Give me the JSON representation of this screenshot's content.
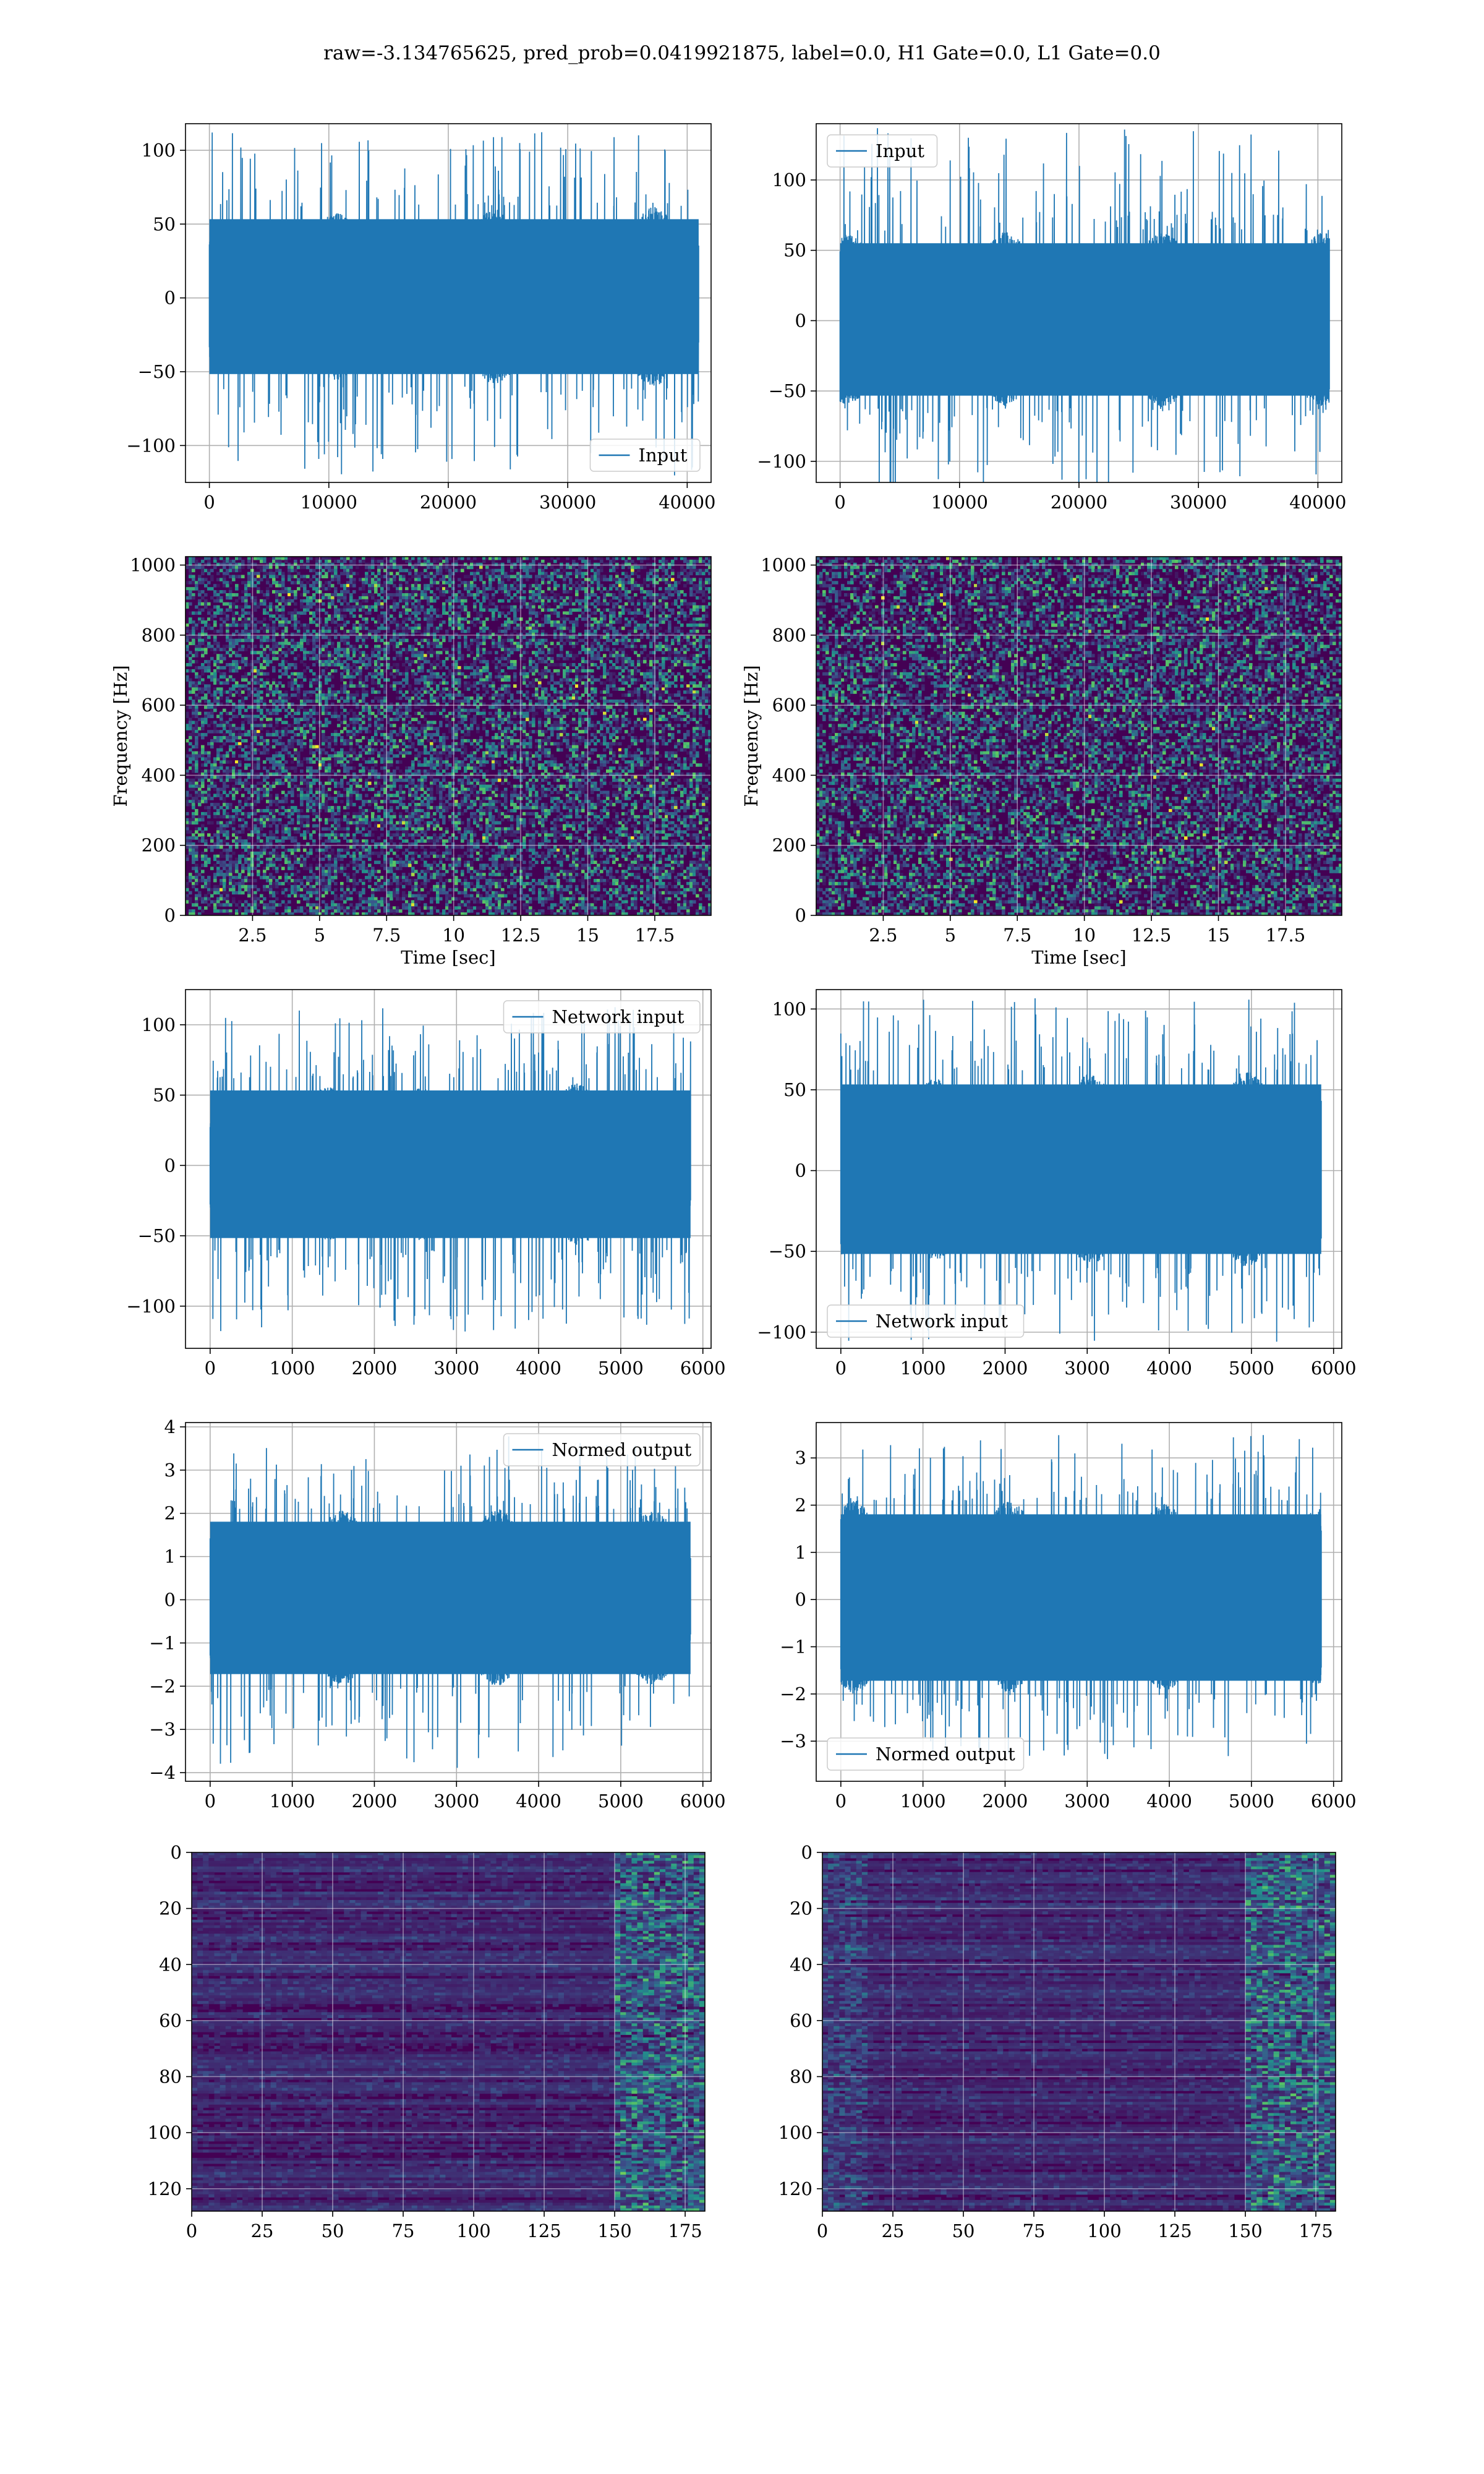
{
  "figure": {
    "title": "raw=-3.134765625, pred_prob=0.0419921875, label=0.0, H1 Gate=0.0, L1 Gate=0.0",
    "colors": {
      "line": "#1f77b4",
      "grid": "#b0b0b0",
      "axes": "#000000",
      "heat_low": "#440154",
      "heat_mid": "#21918c",
      "heat_high": "#fde725"
    }
  },
  "chart_data": [
    {
      "type": "line",
      "id": "input-h1",
      "series": [
        {
          "name": "Input"
        }
      ],
      "xlim": [
        -2000,
        42000
      ],
      "ylim": [
        -125,
        118
      ],
      "xticks": [
        0,
        10000,
        20000,
        30000,
        40000
      ],
      "yticks": [
        -100,
        -50,
        0,
        50,
        100
      ],
      "n_samples": 40960,
      "band": [
        -60,
        62
      ],
      "extreme_min": -122,
      "extreme_max": 116,
      "grid": true,
      "legend": "lower-right"
    },
    {
      "type": "line",
      "id": "input-l1",
      "series": [
        {
          "name": "Input"
        }
      ],
      "xlim": [
        -2000,
        42000
      ],
      "ylim": [
        -115,
        140
      ],
      "xticks": [
        0,
        10000,
        20000,
        30000,
        40000
      ],
      "yticks": [
        -100,
        -50,
        0,
        50,
        100
      ],
      "n_samples": 40960,
      "band": [
        -62,
        64
      ],
      "extreme_min": -125,
      "extreme_max": 137,
      "grid": true,
      "legend": "upper-left"
    },
    {
      "type": "heatmap",
      "id": "spectrogram-h1",
      "xlim": [
        0,
        19.6
      ],
      "ylim": [
        0,
        1024
      ],
      "xticks": [
        2.5,
        5.0,
        7.5,
        10.0,
        12.5,
        15.0,
        17.5
      ],
      "yticks": [
        0,
        200,
        400,
        600,
        800,
        1000
      ],
      "xlabel": "Time [sec]",
      "ylabel": "Frequency [Hz]",
      "grid": true
    },
    {
      "type": "heatmap",
      "id": "spectrogram-l1",
      "xlim": [
        0,
        19.6
      ],
      "ylim": [
        0,
        1024
      ],
      "xticks": [
        2.5,
        5.0,
        7.5,
        10.0,
        12.5,
        15.0,
        17.5
      ],
      "yticks": [
        0,
        200,
        400,
        600,
        800,
        1000
      ],
      "xlabel": "Time [sec]",
      "ylabel": "Frequency [Hz]",
      "grid": true
    },
    {
      "type": "line",
      "id": "network-input-h1",
      "series": [
        {
          "name": "Network input"
        }
      ],
      "xlim": [
        -300,
        6100
      ],
      "ylim": [
        -130,
        125
      ],
      "xticks": [
        0,
        1000,
        2000,
        3000,
        4000,
        5000,
        6000
      ],
      "yticks": [
        -100,
        -50,
        0,
        50,
        100
      ],
      "n_samples": 5850,
      "band": [
        -60,
        62
      ],
      "extreme_min": -118,
      "extreme_max": 114,
      "grid": true,
      "legend": "upper-right"
    },
    {
      "type": "line",
      "id": "network-input-l1",
      "series": [
        {
          "name": "Network input"
        }
      ],
      "xlim": [
        -300,
        6100
      ],
      "ylim": [
        -110,
        112
      ],
      "xticks": [
        0,
        1000,
        2000,
        3000,
        4000,
        5000,
        6000
      ],
      "yticks": [
        -100,
        -50,
        0,
        50,
        100
      ],
      "n_samples": 5850,
      "band": [
        -60,
        62
      ],
      "extreme_min": -106,
      "extreme_max": 107,
      "grid": true,
      "legend": "lower-left"
    },
    {
      "type": "line",
      "id": "normed-output-h1",
      "series": [
        {
          "name": "Normed output"
        }
      ],
      "xlim": [
        -300,
        6100
      ],
      "ylim": [
        -4.2,
        4.1
      ],
      "xticks": [
        0,
        1000,
        2000,
        3000,
        4000,
        5000,
        6000
      ],
      "yticks": [
        -4,
        -3,
        -2,
        -1,
        0,
        1,
        2,
        3,
        4
      ],
      "n_samples": 5850,
      "band": [
        -2.0,
        2.1
      ],
      "extreme_min": -3.9,
      "extreme_max": 3.8,
      "grid": true,
      "legend": "upper-right"
    },
    {
      "type": "line",
      "id": "normed-output-l1",
      "series": [
        {
          "name": "Normed output"
        }
      ],
      "xlim": [
        -300,
        6100
      ],
      "ylim": [
        -3.85,
        3.75
      ],
      "xticks": [
        0,
        1000,
        2000,
        3000,
        4000,
        5000,
        6000
      ],
      "yticks": [
        -3,
        -2,
        -1,
        0,
        1,
        2,
        3
      ],
      "n_samples": 5850,
      "band": [
        -2.0,
        2.1
      ],
      "extreme_min": -3.4,
      "extreme_max": 3.5,
      "grid": true,
      "legend": "lower-left"
    },
    {
      "type": "heatmap",
      "id": "feature-map-h1",
      "xlim": [
        0,
        182
      ],
      "ylim": [
        128,
        0
      ],
      "xticks": [
        0,
        25,
        50,
        75,
        100,
        125,
        150,
        175
      ],
      "yticks": [
        0,
        20,
        40,
        60,
        80,
        100,
        120
      ],
      "grid": true
    },
    {
      "type": "heatmap",
      "id": "feature-map-l1",
      "xlim": [
        0,
        182
      ],
      "ylim": [
        128,
        0
      ],
      "xticks": [
        0,
        25,
        50,
        75,
        100,
        125,
        150,
        175
      ],
      "yticks": [
        0,
        20,
        40,
        60,
        80,
        100,
        120
      ],
      "grid": true
    }
  ]
}
